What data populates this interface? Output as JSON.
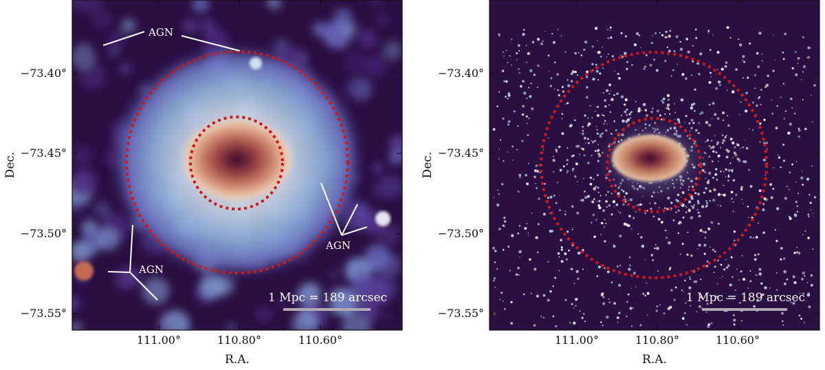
{
  "panels": [
    {
      "id": "left",
      "x_label": "R.A.",
      "y_label": "Dec.",
      "x_ticks": [
        "111.00°",
        "110.80°",
        "110.60°"
      ],
      "y_ticks": [
        "−73.40°",
        "−73.45°",
        "−73.50°",
        "−73.55°"
      ],
      "annotations": [
        "AGN",
        "AGN",
        "AGN"
      ],
      "scale_bar_label": "1 Mpc = 189 arcsec"
    },
    {
      "id": "right",
      "x_label": "R.A.",
      "y_label": "Dec.",
      "x_ticks": [
        "111.00°",
        "110.80°",
        "110.60°"
      ],
      "y_ticks": [
        "−73.40°",
        "−73.45°",
        "−73.50°",
        "−73.55°"
      ],
      "scale_bar_label": "1 Mpc = 189 arcsec"
    }
  ],
  "colors": {
    "background": "#2a0f42",
    "core": "#4a1530",
    "circle": "#d01818",
    "scale_bar": "#b0a9b5"
  }
}
